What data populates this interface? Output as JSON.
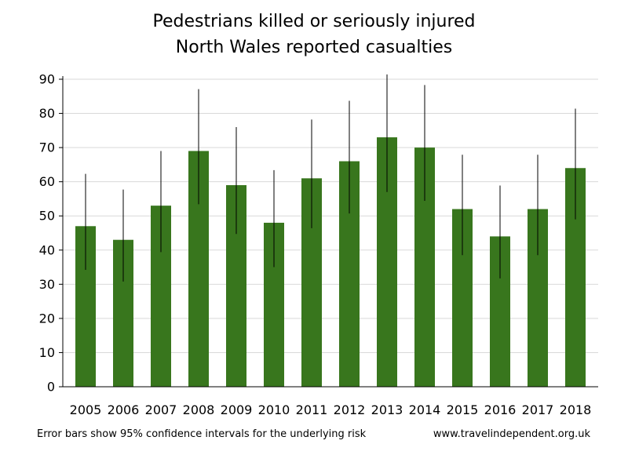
{
  "chart_data": {
    "type": "bar",
    "title": "Pedestrians killed or seriously injured",
    "subtitle": "North Wales reported casualties",
    "categories": [
      "2005",
      "2006",
      "2007",
      "2008",
      "2009",
      "2010",
      "2011",
      "2012",
      "2013",
      "2014",
      "2015",
      "2016",
      "2017",
      "2018"
    ],
    "values": [
      47,
      43,
      53,
      69,
      59,
      48,
      61,
      66,
      73,
      70,
      52,
      44,
      52,
      64
    ],
    "error_low": [
      34.2,
      30.8,
      39.4,
      53.4,
      44.7,
      35.0,
      46.4,
      50.7,
      57.0,
      54.4,
      38.5,
      31.7,
      38.5,
      49.0
    ],
    "error_high": [
      62.3,
      57.7,
      69.0,
      87.1,
      76.0,
      63.4,
      78.2,
      83.7,
      91.4,
      88.3,
      67.9,
      58.9,
      67.9,
      81.4
    ],
    "ylim": [
      0,
      90
    ],
    "yticks": [
      0,
      10,
      20,
      30,
      40,
      50,
      60,
      70,
      80,
      90
    ],
    "grid": true,
    "bar_color": "#38761d",
    "note": "Error bars show 95% confidence intervals for the underlying risk",
    "source": "www.travelindependent.org.uk"
  }
}
